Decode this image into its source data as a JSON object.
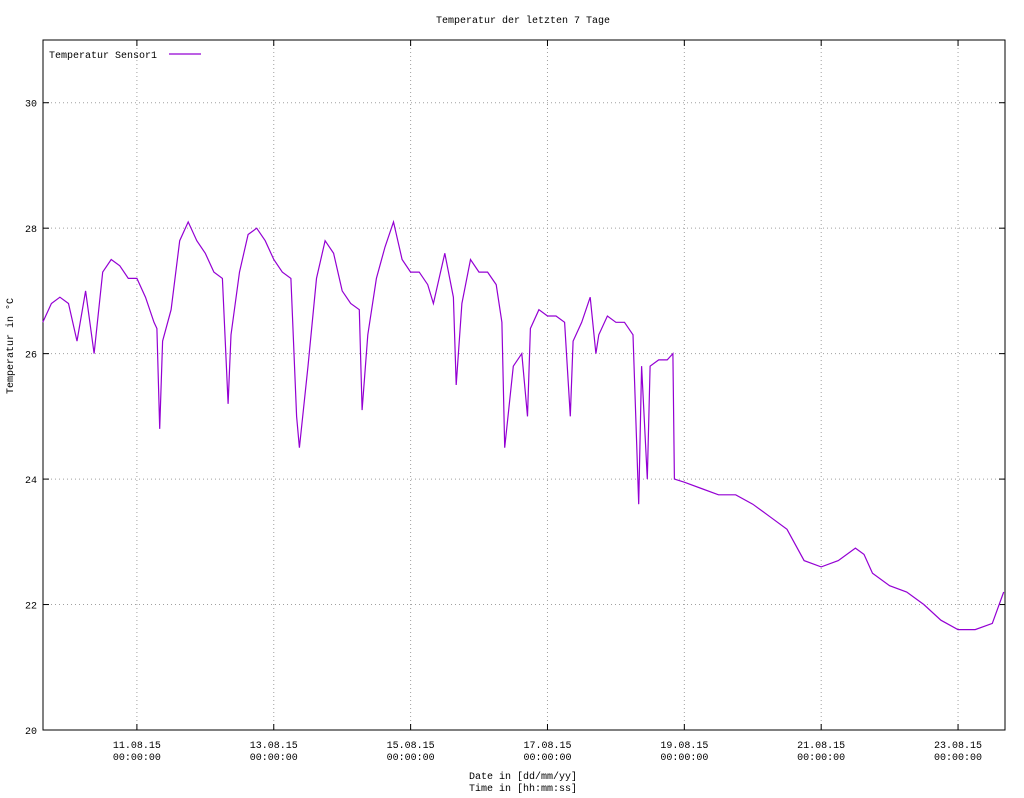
{
  "chart_data": {
    "type": "line",
    "title": "Temperatur der letzten 7 Tage",
    "xlabel": "Date in [dd/mm/yy]\nTime in [hh:mm:ss]",
    "ylabel": "Temperatur in °C",
    "x": [
      "2015-08-09T15:00",
      "2015-08-09T18:00",
      "2015-08-09T21:00",
      "2015-08-10T00:00",
      "2015-08-10T03:00",
      "2015-08-10T06:00",
      "2015-08-10T09:00",
      "2015-08-10T12:00",
      "2015-08-10T15:00",
      "2015-08-10T18:00",
      "2015-08-10T21:00",
      "2015-08-11T00:00",
      "2015-08-11T03:00",
      "2015-08-11T06:00",
      "2015-08-11T07:00",
      "2015-08-11T08:00",
      "2015-08-11T09:00",
      "2015-08-11T12:00",
      "2015-08-11T15:00",
      "2015-08-11T18:00",
      "2015-08-11T21:00",
      "2015-08-12T00:00",
      "2015-08-12T03:00",
      "2015-08-12T06:00",
      "2015-08-12T08:00",
      "2015-08-12T09:00",
      "2015-08-12T12:00",
      "2015-08-12T15:00",
      "2015-08-12T18:00",
      "2015-08-12T21:00",
      "2015-08-13T00:00",
      "2015-08-13T03:00",
      "2015-08-13T06:00",
      "2015-08-13T08:00",
      "2015-08-13T09:00",
      "2015-08-13T12:00",
      "2015-08-13T15:00",
      "2015-08-13T18:00",
      "2015-08-13T21:00",
      "2015-08-14T00:00",
      "2015-08-14T03:00",
      "2015-08-14T06:00",
      "2015-08-14T07:00",
      "2015-08-14T09:00",
      "2015-08-14T12:00",
      "2015-08-14T15:00",
      "2015-08-14T18:00",
      "2015-08-14T21:00",
      "2015-08-15T00:00",
      "2015-08-15T03:00",
      "2015-08-15T06:00",
      "2015-08-15T08:00",
      "2015-08-15T12:00",
      "2015-08-15T15:00",
      "2015-08-15T16:00",
      "2015-08-15T18:00",
      "2015-08-15T21:00",
      "2015-08-16T00:00",
      "2015-08-16T03:00",
      "2015-08-16T06:00",
      "2015-08-16T08:00",
      "2015-08-16T09:00",
      "2015-08-16T12:00",
      "2015-08-16T15:00",
      "2015-08-16T17:00",
      "2015-08-16T18:00",
      "2015-08-16T21:00",
      "2015-08-17T00:00",
      "2015-08-17T03:00",
      "2015-08-17T06:00",
      "2015-08-17T08:00",
      "2015-08-17T09:00",
      "2015-08-17T12:00",
      "2015-08-17T15:00",
      "2015-08-17T17:00",
      "2015-08-17T18:00",
      "2015-08-17T21:00",
      "2015-08-18T00:00",
      "2015-08-18T03:00",
      "2015-08-18T06:00",
      "2015-08-18T08:00",
      "2015-08-18T09:00",
      "2015-08-18T11:00",
      "2015-08-18T12:00",
      "2015-08-18T15:00",
      "2015-08-18T18:00",
      "2015-08-18T20:00",
      "2015-08-18T20:30",
      "2015-08-19T00:00",
      "2015-08-19T06:00",
      "2015-08-19T12:00",
      "2015-08-19T18:00",
      "2015-08-20T00:00",
      "2015-08-20T06:00",
      "2015-08-20T12:00",
      "2015-08-20T18:00",
      "2015-08-21T00:00",
      "2015-08-21T06:00",
      "2015-08-21T12:00",
      "2015-08-21T15:00",
      "2015-08-21T18:00",
      "2015-08-22T00:00",
      "2015-08-22T06:00",
      "2015-08-22T12:00",
      "2015-08-22T18:00",
      "2015-08-23T00:00",
      "2015-08-23T06:00",
      "2015-08-23T12:00",
      "2015-08-23T16:00"
    ],
    "series": [
      {
        "name": "Temperatur Sensor1",
        "color": "#9400d3",
        "values": [
          26.5,
          26.8,
          26.9,
          26.8,
          26.2,
          27.0,
          26.0,
          27.3,
          27.5,
          27.4,
          27.2,
          27.2,
          26.9,
          26.5,
          26.4,
          24.8,
          26.2,
          26.7,
          27.8,
          28.1,
          27.8,
          27.6,
          27.3,
          27.2,
          25.2,
          26.3,
          27.3,
          27.9,
          28.0,
          27.8,
          27.5,
          27.3,
          27.2,
          25.0,
          24.5,
          25.8,
          27.2,
          27.8,
          27.6,
          27.0,
          26.8,
          26.7,
          25.1,
          26.3,
          27.2,
          27.7,
          28.1,
          27.5,
          27.3,
          27.3,
          27.1,
          26.8,
          27.6,
          26.9,
          25.5,
          26.8,
          27.5,
          27.3,
          27.3,
          27.1,
          26.5,
          24.5,
          25.8,
          26.0,
          25.0,
          26.4,
          26.7,
          26.6,
          26.6,
          26.5,
          25.0,
          26.2,
          26.5,
          26.9,
          26.0,
          26.3,
          26.6,
          26.5,
          26.5,
          26.3,
          23.6,
          25.8,
          24.0,
          25.8,
          25.9,
          25.9,
          26.0,
          24.0,
          23.95,
          23.85,
          23.75,
          23.75,
          23.6,
          23.4,
          23.2,
          22.7,
          22.6,
          22.7,
          22.9,
          22.8,
          22.5,
          22.3,
          22.2,
          22.0,
          21.75,
          21.6,
          21.6,
          21.7,
          22.2
        ]
      }
    ],
    "xlim": [
      "2015-08-09T15:04",
      "2015-08-23T16:28"
    ],
    "xticks": [
      {
        "value": "2015-08-11T00:00",
        "label": "11.08.15\n00:00:00"
      },
      {
        "value": "2015-08-13T00:00",
        "label": "13.08.15\n00:00:00"
      },
      {
        "value": "2015-08-15T00:00",
        "label": "15.08.15\n00:00:00"
      },
      {
        "value": "2015-08-17T00:00",
        "label": "17.08.15\n00:00:00"
      },
      {
        "value": "2015-08-19T00:00",
        "label": "19.08.15\n00:00:00"
      },
      {
        "value": "2015-08-21T00:00",
        "label": "21.08.15\n00:00:00"
      },
      {
        "value": "2015-08-23T00:00",
        "label": "23.08.15\n00:00:00"
      }
    ],
    "ylim": [
      20,
      31
    ],
    "yticks": [
      20,
      22,
      24,
      26,
      28,
      30
    ],
    "grid": true,
    "legend": "top-left"
  }
}
